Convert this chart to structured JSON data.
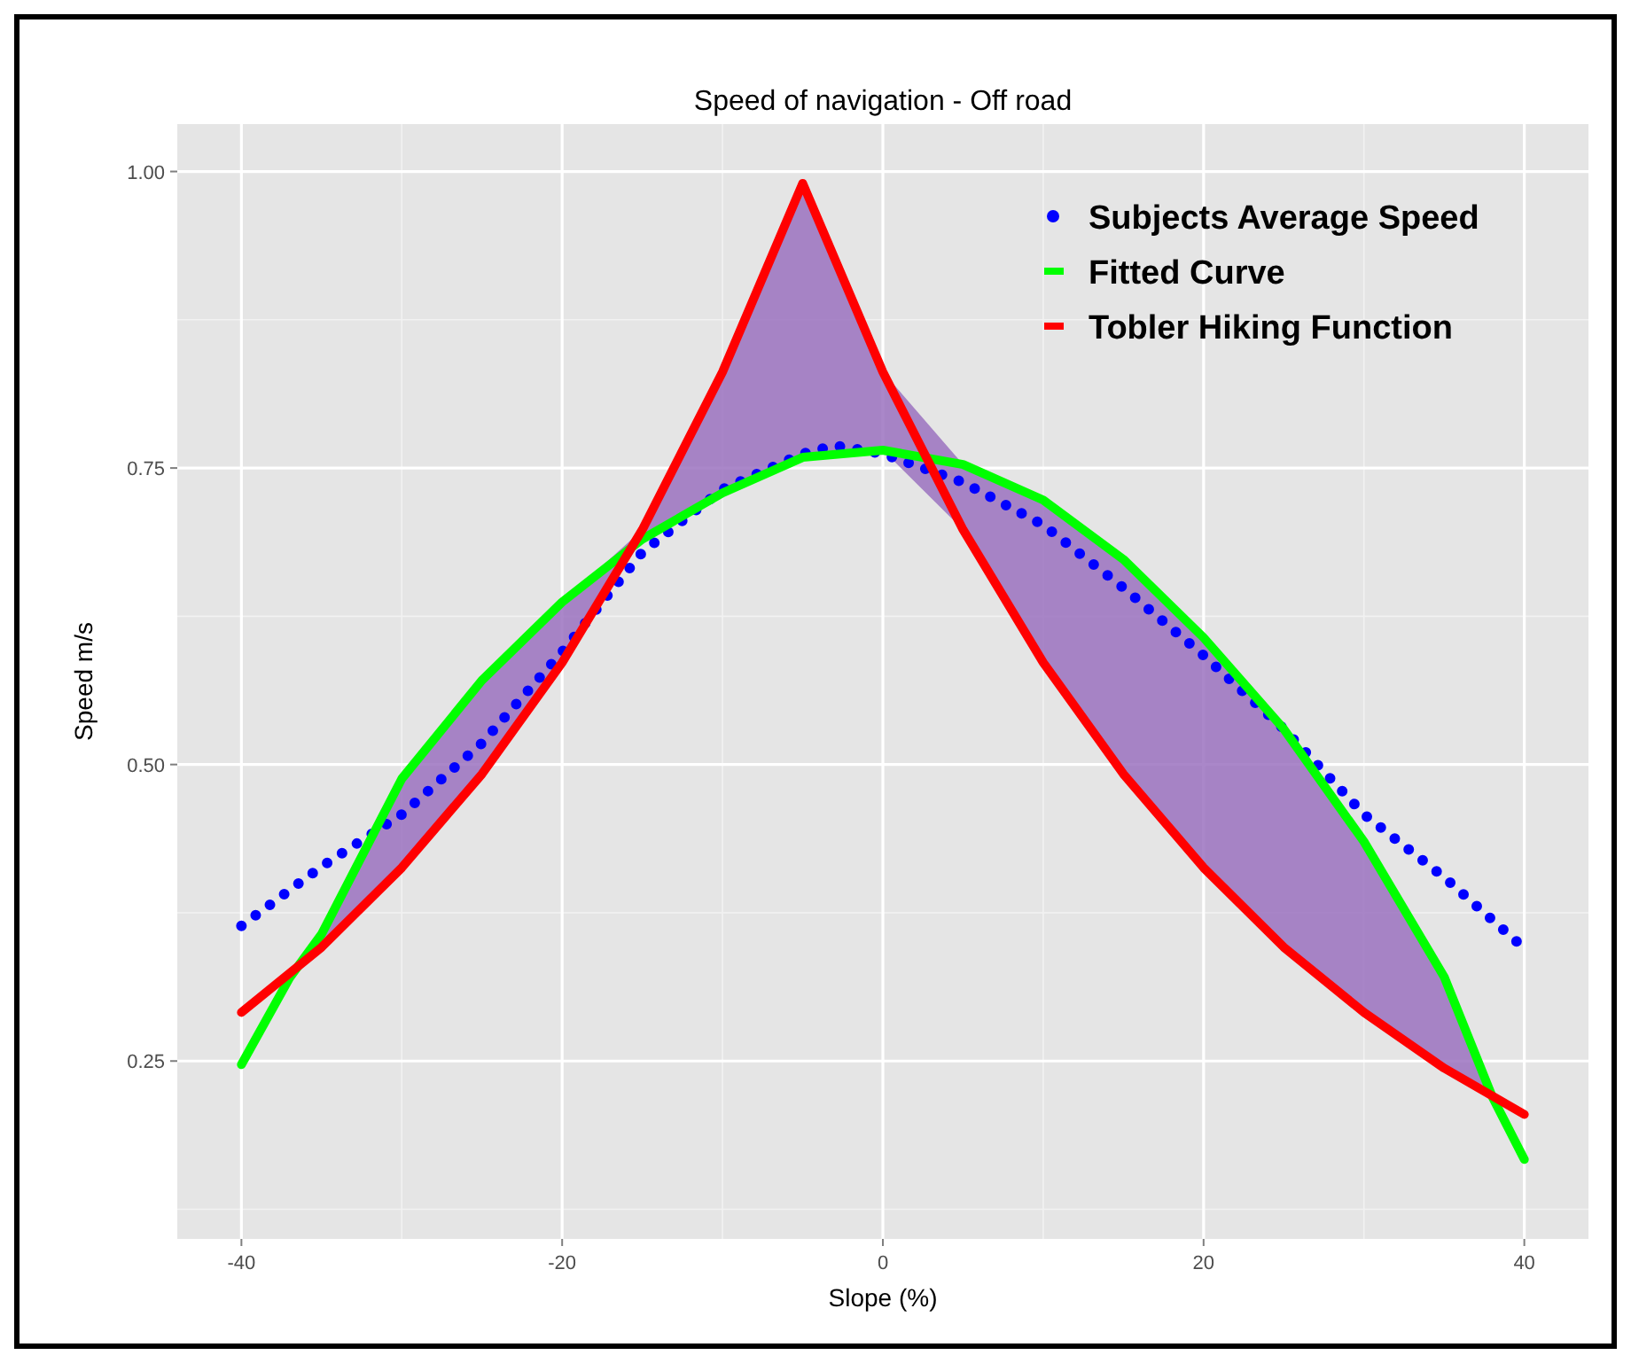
{
  "chart_data": {
    "type": "line",
    "title": "Speed of navigation - Off road",
    "xlabel": "Slope (%)",
    "ylabel": "Speed m/s",
    "xlim": [
      -44,
      44
    ],
    "xticks": [
      -40,
      -20,
      0,
      20,
      40
    ],
    "ylim": [
      0.1,
      1.04
    ],
    "yticks": [
      {
        "value": 0.25,
        "label": "0.25"
      },
      {
        "value": 0.5,
        "label": "0.50"
      },
      {
        "value": 0.75,
        "label": "0.75"
      },
      {
        "value": 1,
        "label": "1.00"
      }
    ],
    "grid": true,
    "legend": "top right",
    "series": [
      {
        "name": "Subjects Average Speed",
        "color": "#0000ff",
        "line_style": "dotted",
        "x": [
          -40,
          -35,
          -30,
          -25,
          -20,
          -15,
          -10,
          -5,
          -3,
          0,
          5,
          10,
          15,
          20,
          25,
          30,
          35,
          40
        ],
        "values": [
          0.364,
          0.414,
          0.458,
          0.518,
          0.595,
          0.679,
          0.732,
          0.762,
          0.769,
          0.762,
          0.738,
          0.702,
          0.649,
          0.592,
          0.53,
          0.458,
          0.405,
          0.345
        ]
      },
      {
        "name": "Fitted Curve",
        "color": "#00ff00",
        "line_style": "solid",
        "x": [
          -40,
          -37,
          -35,
          -30,
          -25,
          -20,
          -15,
          -10,
          -5,
          0,
          5,
          10,
          15,
          20,
          25,
          30,
          35,
          38,
          40
        ],
        "values": [
          0.247,
          0.32,
          0.357,
          0.488,
          0.571,
          0.637,
          0.69,
          0.729,
          0.759,
          0.765,
          0.753,
          0.723,
          0.673,
          0.607,
          0.53,
          0.435,
          0.321,
          0.22,
          0.167
        ],
        "lower": [
          null,
          0.32,
          0.346,
          0.413,
          0.492,
          0.586,
          0.69,
          0.729,
          0.759,
          0.765,
          0.698,
          0.586,
          0.492,
          0.413,
          0.346,
          0.291,
          0.244,
          0.22,
          null
        ],
        "upper": [
          null,
          0.32,
          0.357,
          0.488,
          0.571,
          0.637,
          0.698,
          0.831,
          0.99,
          0.831,
          0.753,
          0.723,
          0.673,
          0.607,
          0.53,
          0.435,
          0.321,
          0.22,
          null
        ]
      },
      {
        "name": "Tobler Hiking Function",
        "color": "#ff0000",
        "line_style": "solid",
        "x": [
          -40,
          -35,
          -30,
          -25,
          -20,
          -15,
          -10,
          -5,
          0,
          5,
          10,
          15,
          20,
          25,
          30,
          35,
          40
        ],
        "values": [
          0.291,
          0.346,
          0.413,
          0.492,
          0.586,
          0.698,
          0.831,
          0.99,
          0.831,
          0.698,
          0.586,
          0.492,
          0.413,
          0.346,
          0.291,
          0.244,
          0.205
        ]
      }
    ]
  }
}
